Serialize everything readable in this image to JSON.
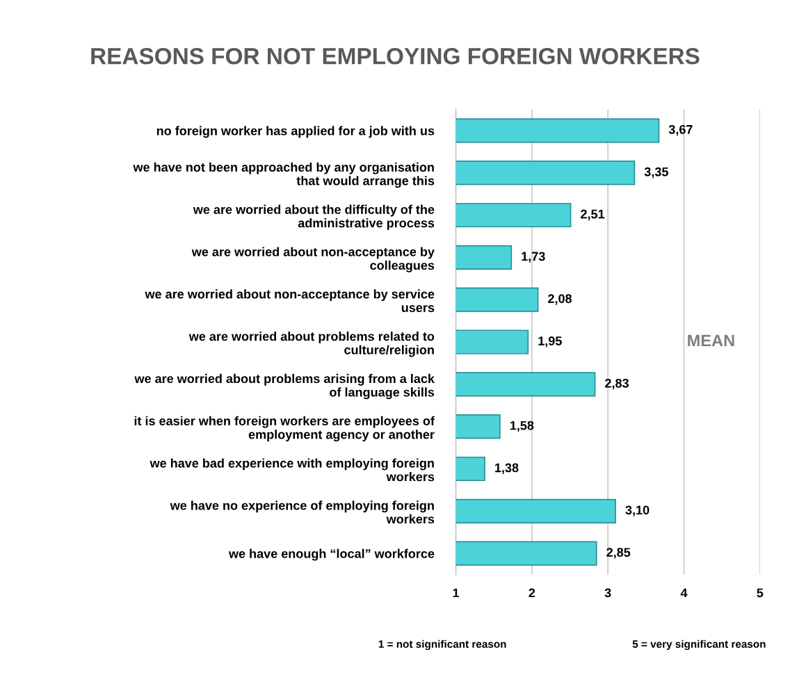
{
  "chart_data": {
    "type": "bar",
    "orientation": "horizontal",
    "title": "REASONS FOR NOT EMPLOYING FOREIGN WORKERS",
    "categories": [
      "no foreign worker has applied for a job with us",
      "we have not been approached by any organisation\nthat would arrange this",
      "we are worried about the difficulty of the\nadministrative process",
      "we are worried about non-acceptance by\ncolleagues",
      "we are worried about non-acceptance by service\nusers",
      "we are worried about problems related to\nculture/religion",
      "we are worried about problems arising from a lack\nof language skills",
      "it is easier when foreign workers are employees of\nemployment agency or another",
      "we have bad experience with employing foreign\nworkers",
      "we have no experience of employing foreign\nworkers",
      "we have enough “local” workforce"
    ],
    "values": [
      3.67,
      3.35,
      2.51,
      1.73,
      2.08,
      1.95,
      2.83,
      1.58,
      1.38,
      3.1,
      2.85
    ],
    "value_labels": [
      "3,67",
      "3,35",
      "2,51",
      "1,73",
      "2,08",
      "1,95",
      "2,83",
      "1,58",
      "1,38",
      "3,10",
      "2,85"
    ],
    "color": "#4cd3da",
    "xlim": [
      1,
      5
    ],
    "xticks": [
      1,
      2,
      3,
      4,
      5
    ],
    "grid": "x",
    "annotations": [
      "MEAN",
      "1 = not significant reason",
      "5 = very significant reason"
    ]
  }
}
